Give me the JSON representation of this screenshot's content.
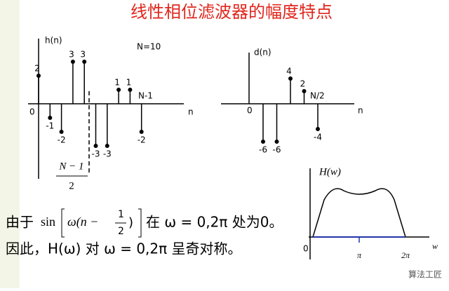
{
  "title": "线性相位滤波器的幅度特点",
  "h_plot": {
    "y_label": "h(n)",
    "x_label": "n",
    "origin": "0",
    "note": "N=10",
    "end_label": "N-1",
    "values": [
      2,
      -1,
      -2,
      3,
      3,
      -3,
      -3,
      1,
      1,
      -2
    ],
    "mid_numerator": "N − 1",
    "mid_denominator": "2"
  },
  "d_plot": {
    "y_label": "d(n)",
    "x_label": "n",
    "origin": "0",
    "mid_label": "N/2",
    "values": [
      -6,
      -6,
      4,
      2,
      -4
    ]
  },
  "H_plot": {
    "y_label": "H(w)",
    "x_label": "w",
    "ticks": [
      "0",
      "π",
      "2π"
    ]
  },
  "text": {
    "line1_a": "由于",
    "sin": "sin",
    "arg": "ω(n −",
    "frac_num": "1",
    "frac_den": "2",
    "close": ")",
    "line1_b": "在 ω = 0,2π 处为0。",
    "line2": "因此，H(ω) 对 ω = 0,2π 呈奇对称。"
  },
  "watermark": "算法工匠"
}
